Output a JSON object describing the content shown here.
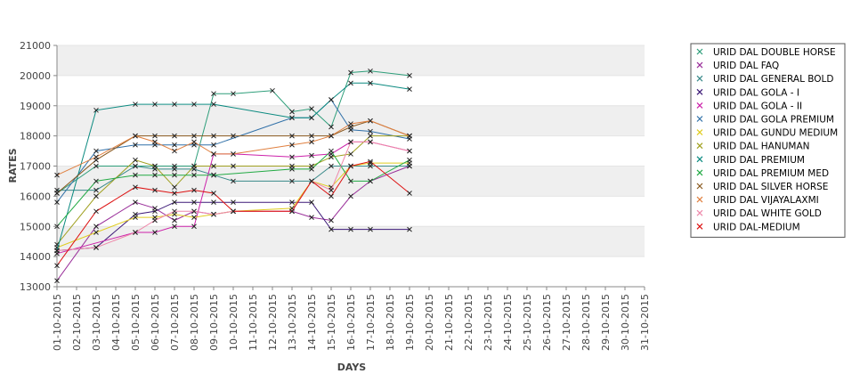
{
  "chart_data": {
    "type": "line",
    "xlabel": "DAYS",
    "ylabel": "RATES",
    "ylim": [
      13000,
      21000
    ],
    "yticks": [
      13000,
      14000,
      15000,
      16000,
      17000,
      18000,
      19000,
      20000,
      21000
    ],
    "grid": "horizontal alternating bands",
    "legend_position": "right",
    "categories": [
      "01-10-2015",
      "02-10-2015",
      "03-10-2015",
      "04-10-2015",
      "05-10-2015",
      "06-10-2015",
      "07-10-2015",
      "08-10-2015",
      "09-10-2015",
      "10-10-2015",
      "11-10-2015",
      "12-10-2015",
      "13-10-2015",
      "14-10-2015",
      "15-10-2015",
      "16-10-2015",
      "17-10-2015",
      "18-10-2015",
      "19-10-2015",
      "20-10-2015",
      "21-10-2015",
      "22-10-2015",
      "23-10-2015",
      "24-10-2015",
      "25-10-2015",
      "26-10-2015",
      "27-10-2015",
      "28-10-2015",
      "29-10-2015",
      "30-10-2015",
      "31-10-2015"
    ],
    "series": [
      {
        "name": "URID DAL DOUBLE HORSE",
        "color": "#2e9e7a",
        "points": [
          [
            0,
            16100
          ],
          [
            2,
            17000
          ],
          [
            4,
            17000
          ],
          [
            5,
            17000
          ],
          [
            6,
            17000
          ],
          [
            7,
            17000
          ],
          [
            8,
            19400
          ],
          [
            9,
            19400
          ],
          [
            11,
            19500
          ],
          [
            12,
            18800
          ],
          [
            13,
            18900
          ],
          [
            14,
            18300
          ],
          [
            15,
            20100
          ],
          [
            16,
            20150
          ],
          [
            18,
            20000
          ]
        ]
      },
      {
        "name": "URID DAL FAQ",
        "color": "#9a2f9a",
        "points": [
          [
            0,
            13200
          ],
          [
            2,
            15000
          ],
          [
            4,
            15800
          ],
          [
            5,
            15600
          ],
          [
            6,
            15200
          ],
          [
            7,
            15500
          ],
          [
            8,
            15400
          ],
          [
            9,
            15500
          ],
          [
            12,
            15500
          ],
          [
            13,
            15300
          ],
          [
            14,
            15200
          ],
          [
            15,
            16000
          ],
          [
            16,
            16500
          ],
          [
            18,
            17000
          ]
        ]
      },
      {
        "name": "URID DAL GENERAL BOLD",
        "color": "#3a8a8a",
        "points": [
          [
            0,
            16200
          ],
          [
            2,
            16200
          ],
          [
            4,
            17000
          ],
          [
            5,
            16900
          ],
          [
            6,
            16900
          ],
          [
            7,
            16900
          ],
          [
            8,
            16700
          ],
          [
            9,
            16500
          ],
          [
            12,
            16500
          ],
          [
            13,
            16500
          ],
          [
            14,
            17000
          ],
          [
            15,
            17000
          ],
          [
            16,
            17000
          ],
          [
            18,
            17000
          ]
        ]
      },
      {
        "name": "URID DAL GOLA - I",
        "color": "#3d1a78",
        "points": [
          [
            0,
            14200
          ],
          [
            2,
            14300
          ],
          [
            4,
            15400
          ],
          [
            5,
            15500
          ],
          [
            6,
            15800
          ],
          [
            7,
            15800
          ],
          [
            8,
            15800
          ],
          [
            9,
            15800
          ],
          [
            12,
            15800
          ],
          [
            13,
            15800
          ],
          [
            14,
            14900
          ],
          [
            15,
            14900
          ],
          [
            16,
            14900
          ],
          [
            18,
            14900
          ]
        ]
      },
      {
        "name": "URID DAL GOLA - II",
        "color": "#cc22aa",
        "points": [
          [
            0,
            14100
          ],
          [
            4,
            14800
          ],
          [
            5,
            14800
          ],
          [
            6,
            15000
          ],
          [
            7,
            15000
          ],
          [
            8,
            17400
          ],
          [
            9,
            17400
          ],
          [
            12,
            17300
          ],
          [
            13,
            17350
          ],
          [
            14,
            17400
          ],
          [
            15,
            17800
          ],
          [
            16,
            17800
          ],
          [
            18,
            17500
          ]
        ]
      },
      {
        "name": "URID DAL GOLA PREMIUM",
        "color": "#3070a8",
        "points": [
          [
            0,
            15800
          ],
          [
            2,
            17500
          ],
          [
            4,
            17700
          ],
          [
            5,
            17700
          ],
          [
            6,
            17700
          ],
          [
            7,
            17700
          ],
          [
            8,
            17700
          ],
          [
            12,
            18600
          ],
          [
            13,
            18600
          ],
          [
            14,
            19200
          ],
          [
            15,
            18200
          ],
          [
            16,
            18150
          ],
          [
            18,
            17900
          ]
        ]
      },
      {
        "name": "URID DAL GUNDU MEDIUM",
        "color": "#e0cc20",
        "points": [
          [
            0,
            14300
          ],
          [
            2,
            14800
          ],
          [
            4,
            15300
          ],
          [
            5,
            15300
          ],
          [
            6,
            15400
          ],
          [
            7,
            15300
          ],
          [
            8,
            15400
          ],
          [
            9,
            15500
          ],
          [
            12,
            15600
          ],
          [
            13,
            16500
          ],
          [
            14,
            16300
          ],
          [
            15,
            17000
          ],
          [
            16,
            17100
          ],
          [
            18,
            17100
          ]
        ]
      },
      {
        "name": "URID DAL HANUMAN",
        "color": "#a0a020",
        "points": [
          [
            0,
            14400
          ],
          [
            2,
            16000
          ],
          [
            4,
            17200
          ],
          [
            5,
            17000
          ],
          [
            6,
            16300
          ],
          [
            7,
            17000
          ],
          [
            8,
            17000
          ],
          [
            9,
            17000
          ],
          [
            12,
            17000
          ],
          [
            13,
            17000
          ],
          [
            14,
            17300
          ],
          [
            15,
            17400
          ],
          [
            16,
            18000
          ],
          [
            18,
            18000
          ]
        ]
      },
      {
        "name": "URID DAL PREMIUM",
        "color": "#0b8a80",
        "points": [
          [
            0,
            14200
          ],
          [
            2,
            18850
          ],
          [
            4,
            19050
          ],
          [
            5,
            19050
          ],
          [
            6,
            19050
          ],
          [
            7,
            19050
          ],
          [
            8,
            19050
          ],
          [
            12,
            18600
          ],
          [
            13,
            18600
          ],
          [
            14,
            19200
          ],
          [
            15,
            19750
          ],
          [
            16,
            19750
          ],
          [
            18,
            19550
          ]
        ]
      },
      {
        "name": "URID DAL PREMIUM MED",
        "color": "#22aa44",
        "points": [
          [
            0,
            15000
          ],
          [
            2,
            16500
          ],
          [
            4,
            16700
          ],
          [
            5,
            16700
          ],
          [
            6,
            16700
          ],
          [
            7,
            16700
          ],
          [
            8,
            16700
          ],
          [
            12,
            16900
          ],
          [
            13,
            16900
          ],
          [
            14,
            17500
          ],
          [
            15,
            16500
          ],
          [
            16,
            16500
          ],
          [
            18,
            17200
          ]
        ]
      },
      {
        "name": "URID DAL SILVER HORSE",
        "color": "#8a5a20",
        "points": [
          [
            0,
            16100
          ],
          [
            2,
            17200
          ],
          [
            4,
            18000
          ],
          [
            5,
            18000
          ],
          [
            6,
            18000
          ],
          [
            7,
            18000
          ],
          [
            8,
            18000
          ],
          [
            9,
            18000
          ],
          [
            12,
            18000
          ],
          [
            13,
            18000
          ],
          [
            14,
            18000
          ],
          [
            15,
            18300
          ],
          [
            16,
            18500
          ],
          [
            18,
            18000
          ]
        ]
      },
      {
        "name": "URID DAL VIJAYALAXMI",
        "color": "#e08040",
        "points": [
          [
            0,
            16700
          ],
          [
            2,
            17300
          ],
          [
            4,
            18000
          ],
          [
            5,
            17800
          ],
          [
            6,
            17500
          ],
          [
            7,
            17800
          ],
          [
            8,
            17400
          ],
          [
            9,
            17400
          ],
          [
            12,
            17700
          ],
          [
            13,
            17800
          ],
          [
            14,
            18000
          ],
          [
            15,
            18400
          ],
          [
            16,
            18500
          ],
          [
            18,
            18000
          ]
        ]
      },
      {
        "name": "URID DAL WHITE GOLD",
        "color": "#ee88aa",
        "points": [
          [
            0,
            14200
          ],
          [
            2,
            14300
          ],
          [
            4,
            14800
          ],
          [
            5,
            15200
          ],
          [
            6,
            15500
          ],
          [
            7,
            15500
          ],
          [
            8,
            15400
          ],
          [
            9,
            15500
          ],
          [
            12,
            15500
          ],
          [
            13,
            16500
          ],
          [
            14,
            16200
          ],
          [
            15,
            17800
          ],
          [
            16,
            17800
          ],
          [
            18,
            17500
          ]
        ]
      },
      {
        "name": "URID DAL-MEDIUM",
        "color": "#dd1111",
        "points": [
          [
            0,
            13700
          ],
          [
            2,
            15500
          ],
          [
            4,
            16300
          ],
          [
            5,
            16200
          ],
          [
            6,
            16100
          ],
          [
            7,
            16200
          ],
          [
            8,
            16100
          ],
          [
            9,
            15500
          ],
          [
            12,
            15500
          ],
          [
            13,
            16500
          ],
          [
            14,
            16000
          ],
          [
            15,
            17000
          ],
          [
            16,
            17150
          ],
          [
            18,
            16100
          ]
        ]
      }
    ]
  }
}
